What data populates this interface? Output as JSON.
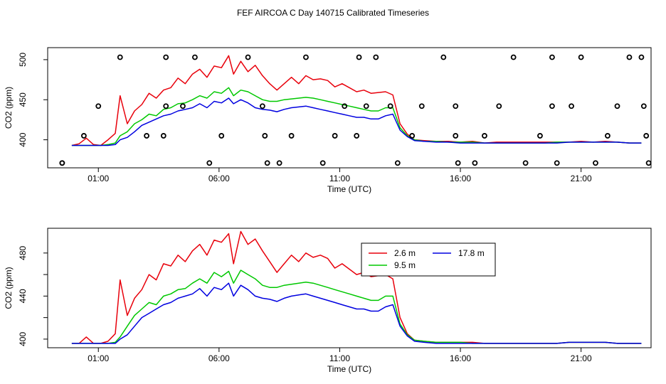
{
  "figure": {
    "title": "FEF AIRCOA C  Day 140715  Calibrated Timeseries"
  },
  "colors": {
    "red": "#e8000b",
    "green": "#00c800",
    "blue": "#0000e0",
    "axis": "#000000"
  },
  "chart_data": [
    {
      "type": "line",
      "panel": "top",
      "xlabel": "Time (UTC)",
      "ylabel": "CO2 (ppm)",
      "x_unit": "hours UTC",
      "xlim": [
        -1.1,
        23.9
      ],
      "ylim": [
        365,
        515
      ],
      "xticks": [
        1,
        6,
        11,
        16,
        21
      ],
      "xtick_labels": [
        "01:00",
        "06:00",
        "11:00",
        "16:00",
        "21:00"
      ],
      "yticks": [
        400,
        450,
        500
      ],
      "ytick_labels": [
        "400",
        "450",
        "500"
      ],
      "x": [
        -0.1,
        0.2,
        0.5,
        0.8,
        1.1,
        1.4,
        1.7,
        1.9,
        2.2,
        2.5,
        2.8,
        3.1,
        3.4,
        3.7,
        4.0,
        4.3,
        4.6,
        4.9,
        5.2,
        5.5,
        5.8,
        6.1,
        6.4,
        6.6,
        6.9,
        7.2,
        7.5,
        7.8,
        8.1,
        8.4,
        8.7,
        9.0,
        9.3,
        9.6,
        9.9,
        10.2,
        10.5,
        10.8,
        11.1,
        11.4,
        11.7,
        12.0,
        12.3,
        12.6,
        12.9,
        13.2,
        13.5,
        13.8,
        14.1,
        14.5,
        15,
        15.5,
        16,
        16.5,
        17,
        17.5,
        18,
        18.5,
        19,
        19.5,
        20,
        20.5,
        21,
        21.5,
        22,
        22.5,
        23,
        23.5
      ],
      "series": [
        {
          "name": "2.6 m",
          "color": "#e8000b",
          "values": [
            393,
            395,
            402,
            394,
            393,
            400,
            408,
            455,
            420,
            436,
            444,
            458,
            452,
            462,
            465,
            477,
            470,
            482,
            488,
            478,
            492,
            490,
            505,
            482,
            498,
            485,
            493,
            480,
            470,
            462,
            470,
            478,
            470,
            480,
            475,
            476,
            474,
            466,
            470,
            465,
            460,
            462,
            458,
            459,
            460,
            456,
            420,
            407,
            400,
            399,
            398,
            398,
            397,
            398,
            396,
            397,
            397,
            397,
            397,
            397,
            397,
            397,
            398,
            397,
            398,
            397,
            396,
            396
          ]
        },
        {
          "name": "9.5 m",
          "color": "#00c800",
          "values": [
            393,
            393,
            393,
            393,
            393,
            394,
            396,
            405,
            410,
            420,
            425,
            432,
            430,
            438,
            440,
            445,
            446,
            450,
            455,
            452,
            460,
            458,
            465,
            455,
            462,
            460,
            455,
            450,
            448,
            448,
            450,
            451,
            452,
            453,
            452,
            450,
            448,
            446,
            444,
            442,
            440,
            438,
            436,
            436,
            440,
            440,
            415,
            405,
            400,
            398,
            398,
            397,
            397,
            397,
            396,
            396,
            396,
            396,
            396,
            396,
            397,
            397,
            397,
            397,
            397,
            397,
            396,
            396
          ]
        },
        {
          "name": "17.8 m",
          "color": "#0000e0",
          "values": [
            393,
            393,
            393,
            393,
            393,
            393,
            394,
            400,
            403,
            410,
            418,
            422,
            426,
            430,
            432,
            436,
            438,
            440,
            445,
            440,
            448,
            446,
            452,
            445,
            450,
            446,
            440,
            438,
            437,
            435,
            438,
            440,
            441,
            442,
            440,
            438,
            436,
            434,
            432,
            430,
            428,
            428,
            426,
            426,
            430,
            432,
            412,
            404,
            399,
            398,
            397,
            397,
            396,
            396,
            396,
            396,
            396,
            396,
            396,
            396,
            396,
            397,
            397,
            397,
            397,
            397,
            396,
            396
          ]
        }
      ]
    },
    {
      "type": "line",
      "panel": "bottom",
      "xlabel": "Time (UTC)",
      "ylabel": "CO2 (ppm)",
      "x_unit": "hours UTC",
      "xlim": [
        -1.1,
        23.9
      ],
      "ylim": [
        392,
        503
      ],
      "xticks": [
        1,
        6,
        11,
        16,
        21
      ],
      "xtick_labels": [
        "01:00",
        "06:00",
        "11:00",
        "16:00",
        "21:00"
      ],
      "yticks": [
        400,
        440,
        480
      ],
      "ytick_labels": [
        "400",
        "440",
        "480"
      ],
      "minor_yticks": [
        420,
        460
      ],
      "legend": {
        "placement": "top-center",
        "entries": [
          "2.6 m",
          "9.5 m",
          "17.8 m"
        ]
      },
      "x": [
        -0.1,
        0.2,
        0.5,
        0.8,
        1.1,
        1.4,
        1.7,
        1.9,
        2.2,
        2.5,
        2.8,
        3.1,
        3.4,
        3.7,
        4.0,
        4.3,
        4.6,
        4.9,
        5.2,
        5.5,
        5.8,
        6.1,
        6.4,
        6.6,
        6.9,
        7.2,
        7.5,
        7.8,
        8.1,
        8.4,
        8.7,
        9.0,
        9.3,
        9.6,
        9.9,
        10.2,
        10.5,
        10.8,
        11.1,
        11.4,
        11.7,
        12.0,
        12.3,
        12.6,
        12.9,
        13.2,
        13.5,
        13.8,
        14.1,
        14.5,
        15,
        15.5,
        16,
        16.5,
        17,
        17.5,
        18,
        18.5,
        19,
        19.5,
        20,
        20.5,
        21,
        21.5,
        22,
        22.5,
        23,
        23.5
      ],
      "series": [
        {
          "name": "2.6 m",
          "color": "#e8000b",
          "values": [
            396,
            396,
            402,
            396,
            396,
            398,
            405,
            455,
            422,
            438,
            446,
            460,
            455,
            470,
            468,
            478,
            472,
            482,
            488,
            478,
            492,
            490,
            498,
            470,
            500,
            488,
            493,
            482,
            472,
            462,
            470,
            478,
            472,
            480,
            476,
            478,
            475,
            466,
            470,
            465,
            460,
            462,
            458,
            459,
            460,
            456,
            420,
            405,
            399,
            398,
            397,
            397,
            397,
            397,
            396,
            396,
            396,
            396,
            396,
            396,
            396,
            397,
            397,
            397,
            397,
            396,
            396,
            396
          ]
        },
        {
          "name": "9.5 m",
          "color": "#00c800",
          "values": [
            396,
            396,
            396,
            396,
            396,
            396,
            397,
            402,
            412,
            422,
            428,
            434,
            432,
            440,
            442,
            446,
            447,
            452,
            456,
            452,
            462,
            458,
            463,
            452,
            464,
            460,
            456,
            450,
            448,
            448,
            450,
            451,
            452,
            453,
            452,
            450,
            448,
            446,
            444,
            442,
            440,
            438,
            436,
            436,
            440,
            440,
            414,
            404,
            399,
            398,
            397,
            397,
            397,
            396,
            396,
            396,
            396,
            396,
            396,
            396,
            396,
            397,
            397,
            397,
            397,
            396,
            396,
            396
          ]
        },
        {
          "name": "17.8 m",
          "color": "#0000e0",
          "values": [
            396,
            396,
            396,
            396,
            396,
            396,
            396,
            400,
            404,
            412,
            420,
            424,
            428,
            432,
            434,
            438,
            440,
            442,
            447,
            440,
            448,
            446,
            452,
            440,
            450,
            446,
            440,
            438,
            437,
            435,
            438,
            440,
            441,
            442,
            440,
            438,
            436,
            434,
            432,
            430,
            428,
            428,
            426,
            426,
            430,
            432,
            412,
            403,
            398,
            397,
            396,
            396,
            396,
            396,
            396,
            396,
            396,
            396,
            396,
            396,
            396,
            397,
            397,
            397,
            397,
            396,
            396,
            396
          ]
        }
      ]
    },
    {
      "type": "scatter",
      "panel": "top-calibration-markers",
      "marker": "open-circle",
      "x": [
        -0.5,
        0.4,
        1.0,
        1.9,
        3.0,
        3.8,
        -0.5,
        3.7,
        3.8,
        4.5,
        5.0,
        5.6,
        6.1,
        7.2,
        7.8,
        7.9,
        8.0,
        8.5,
        9.0,
        9.6,
        10.3,
        10.8,
        11.2,
        11.7,
        11.8,
        12.1,
        12.5,
        13.1,
        13.4,
        14.0,
        14.4,
        15.3,
        15.8,
        15.8,
        15.9,
        16.6,
        17.0,
        17.6,
        18.2,
        18.7,
        19.3,
        19.8,
        19.8,
        20.0,
        20.6,
        21.0,
        21.6,
        22.1,
        22.5,
        23.0,
        23.5,
        23.6,
        23.7,
        23.8
      ],
      "y": [
        371,
        405,
        442,
        503,
        405,
        442,
        371,
        405,
        503,
        442,
        503,
        371,
        405,
        503,
        442,
        405,
        371,
        371,
        405,
        503,
        371,
        405,
        442,
        405,
        503,
        442,
        503,
        442,
        371,
        405,
        442,
        503,
        442,
        405,
        371,
        371,
        405,
        442,
        503,
        371,
        405,
        442,
        503,
        371,
        442,
        503,
        371,
        405,
        442,
        503,
        503,
        442,
        405,
        371
      ]
    }
  ]
}
